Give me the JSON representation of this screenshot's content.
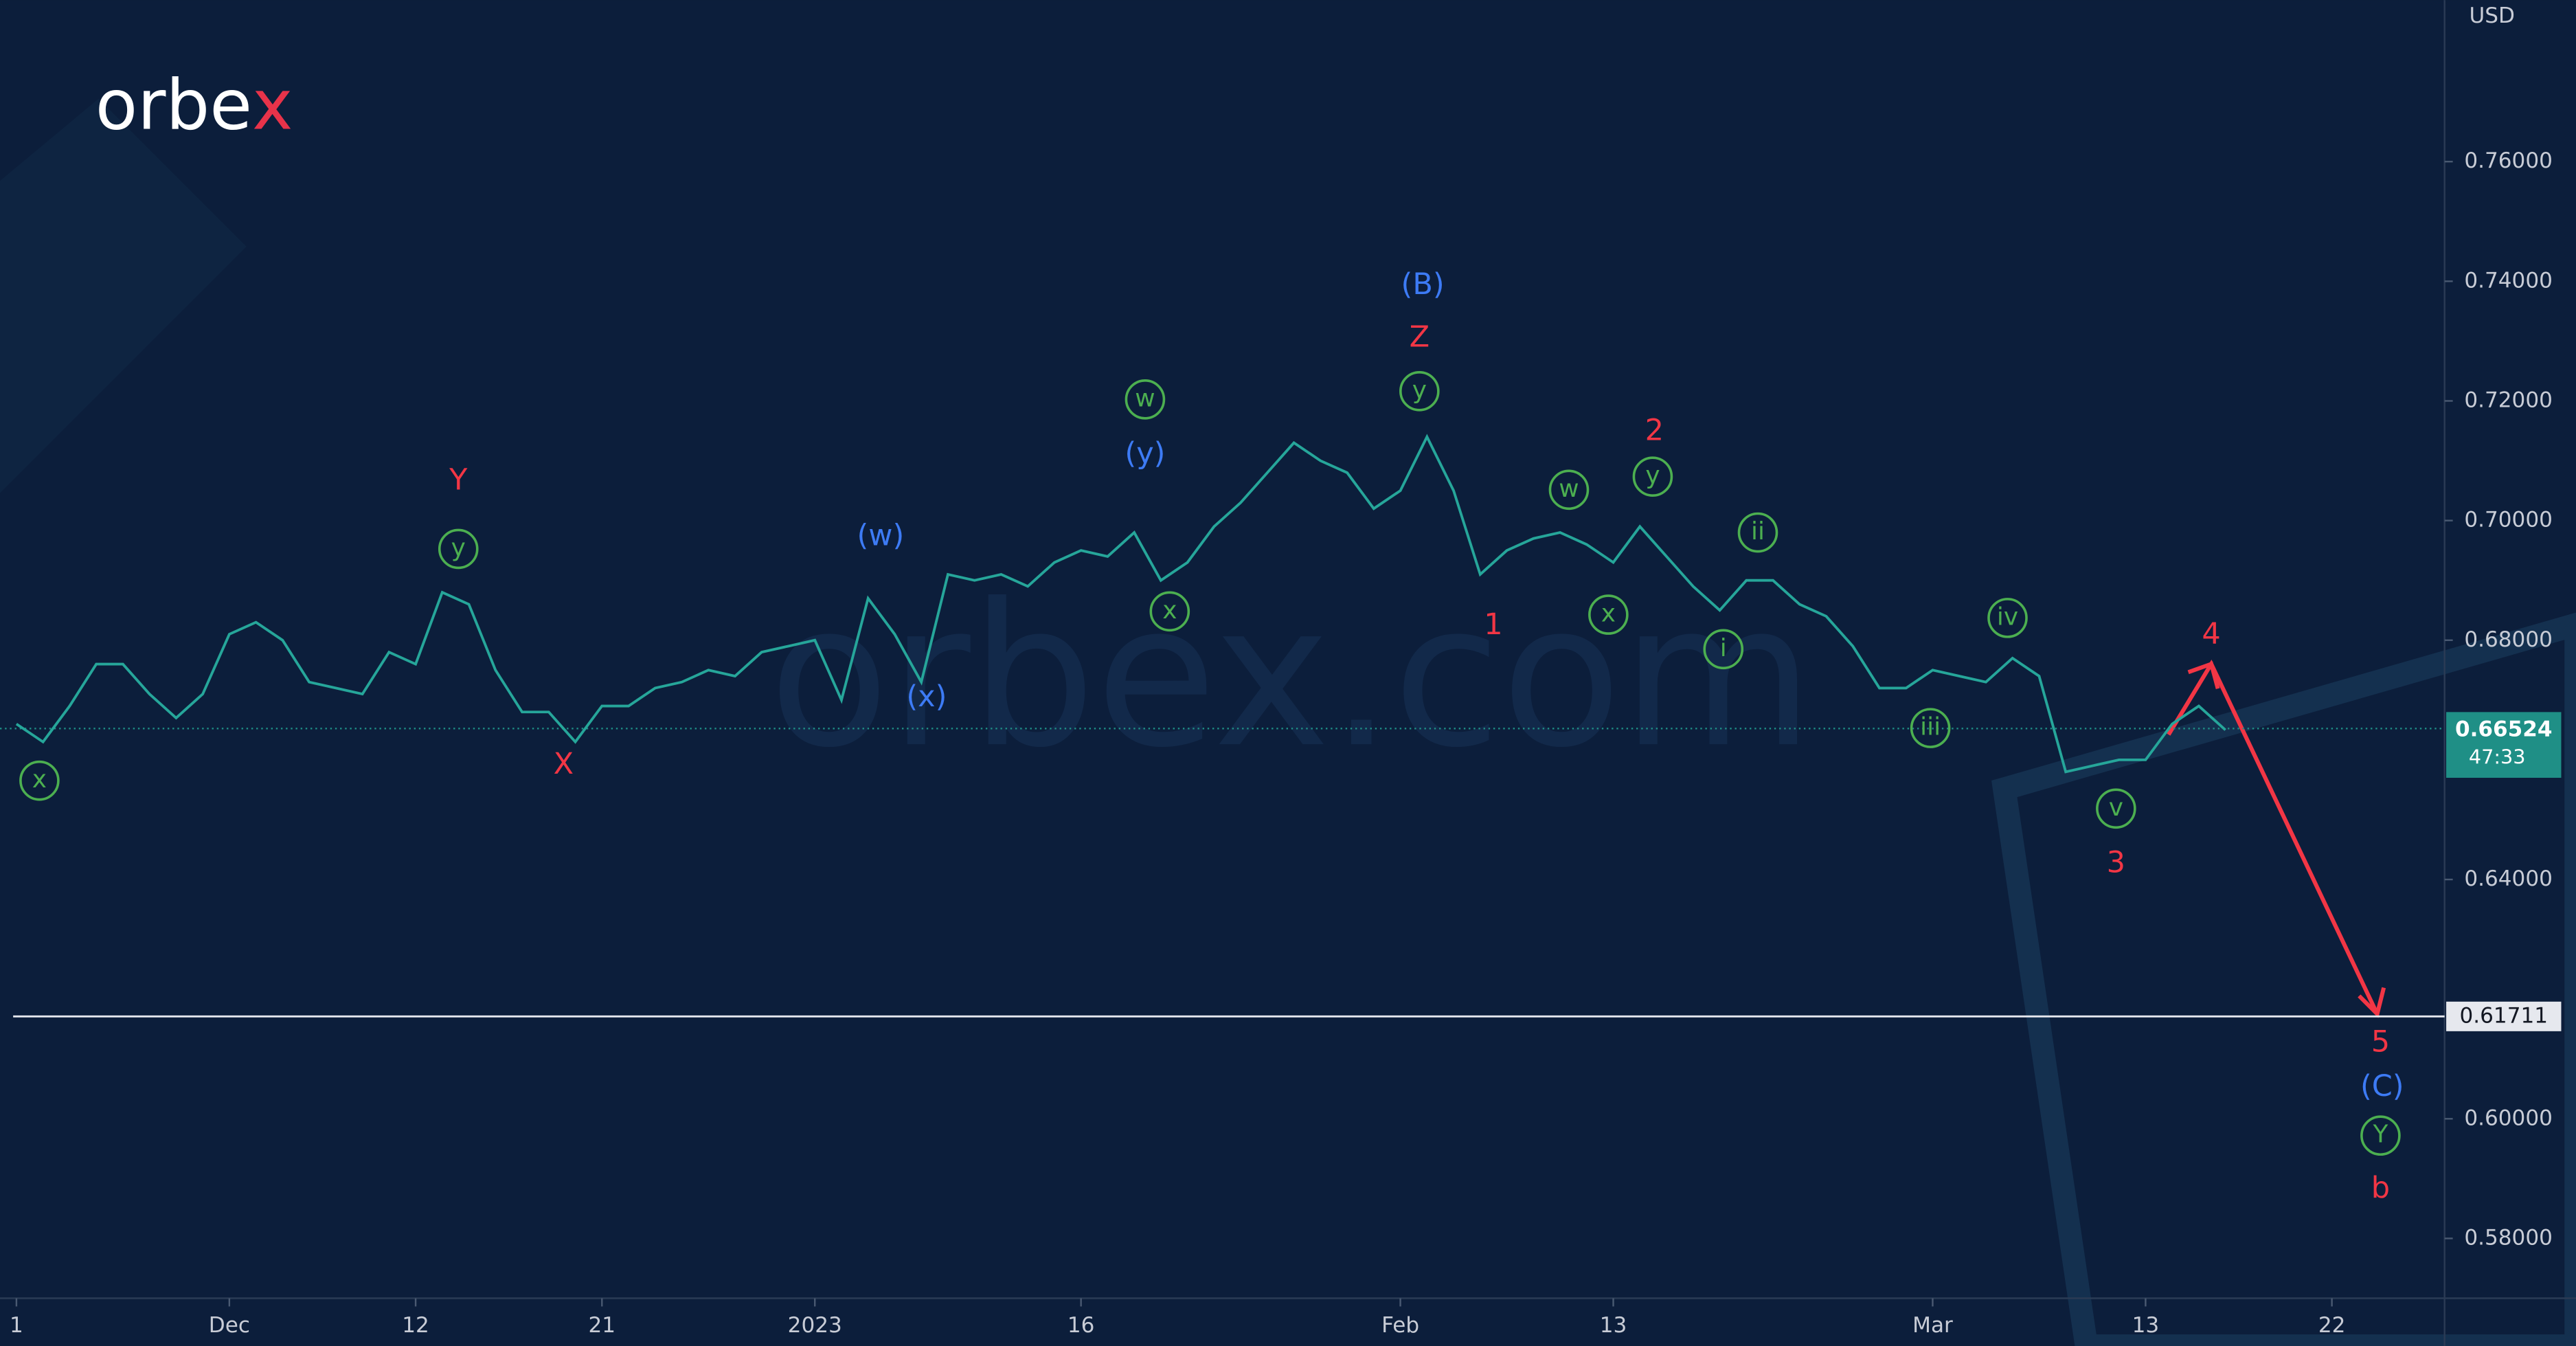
{
  "logo": "orbex",
  "watermark": "orbex.com",
  "chart_data": {
    "type": "line",
    "currency": "USD",
    "color": "#26a69a",
    "x": [
      "2022-11-21",
      "2022-11-22",
      "2022-11-23",
      "2022-11-24",
      "2022-11-25",
      "2022-11-28",
      "2022-11-29",
      "2022-11-30",
      "2022-12-01",
      "2022-12-02",
      "2022-12-05",
      "2022-12-06",
      "2022-12-07",
      "2022-12-08",
      "2022-12-09",
      "2022-12-12",
      "2022-12-13",
      "2022-12-14",
      "2022-12-15",
      "2022-12-16",
      "2022-12-19",
      "2022-12-20",
      "2022-12-21",
      "2022-12-22",
      "2022-12-23",
      "2022-12-26",
      "2022-12-27",
      "2022-12-28",
      "2022-12-29",
      "2022-12-30",
      "2023-01-02",
      "2023-01-03",
      "2023-01-04",
      "2023-01-05",
      "2023-01-06",
      "2023-01-09",
      "2023-01-10",
      "2023-01-11",
      "2023-01-12",
      "2023-01-13",
      "2023-01-16",
      "2023-01-17",
      "2023-01-18",
      "2023-01-19",
      "2023-01-20",
      "2023-01-23",
      "2023-01-24",
      "2023-01-25",
      "2023-01-26",
      "2023-01-27",
      "2023-01-30",
      "2023-01-31",
      "2023-02-01",
      "2023-02-02",
      "2023-02-03",
      "2023-02-06",
      "2023-02-07",
      "2023-02-08",
      "2023-02-09",
      "2023-02-10",
      "2023-02-13",
      "2023-02-14",
      "2023-02-15",
      "2023-02-16",
      "2023-02-17",
      "2023-02-20",
      "2023-02-21",
      "2023-02-22",
      "2023-02-23",
      "2023-02-24",
      "2023-02-27",
      "2023-02-28",
      "2023-03-01",
      "2023-03-02",
      "2023-03-03",
      "2023-03-06",
      "2023-03-07",
      "2023-03-08",
      "2023-03-09",
      "2023-03-10",
      "2023-03-13",
      "2023-03-14",
      "2023-03-15",
      "2023-03-16"
    ],
    "values": [
      0.666,
      0.663,
      0.669,
      0.676,
      0.676,
      0.671,
      0.667,
      0.671,
      0.681,
      0.683,
      0.68,
      0.673,
      0.672,
      0.671,
      0.678,
      0.676,
      0.688,
      0.686,
      0.675,
      0.668,
      0.668,
      0.663,
      0.669,
      0.669,
      0.672,
      0.673,
      0.675,
      0.674,
      0.678,
      0.679,
      0.68,
      0.67,
      0.687,
      0.681,
      0.673,
      0.691,
      0.69,
      0.691,
      0.689,
      0.693,
      0.695,
      0.694,
      0.698,
      0.69,
      0.693,
      0.699,
      0.703,
      0.708,
      0.713,
      0.71,
      0.708,
      0.702,
      0.705,
      0.714,
      0.705,
      0.691,
      0.695,
      0.697,
      0.698,
      0.696,
      0.693,
      0.699,
      0.694,
      0.689,
      0.685,
      0.69,
      0.69,
      0.686,
      0.684,
      0.679,
      0.672,
      0.672,
      0.675,
      0.674,
      0.673,
      0.677,
      0.674,
      0.658,
      0.659,
      0.66,
      0.66,
      0.666,
      0.669,
      0.665
    ],
    "xticks": [
      {
        "value": "2022-11-21",
        "label": "1"
      },
      {
        "value": "2022-12-01",
        "label": "Dec"
      },
      {
        "value": "2022-12-12",
        "label": "12"
      },
      {
        "value": "2022-12-21",
        "label": "21"
      },
      {
        "value": "2023-01-02",
        "label": "2023"
      },
      {
        "value": "2023-01-16",
        "label": "16"
      },
      {
        "value": "2023-02-01",
        "label": "Feb"
      },
      {
        "value": "2023-02-13",
        "label": "13"
      },
      {
        "value": "2023-03-01",
        "label": "Mar"
      },
      {
        "value": "2023-03-13",
        "label": "13"
      },
      {
        "value": "2023-03-22",
        "label": "22"
      }
    ],
    "ylim": [
      0.57,
      0.787
    ],
    "yticks": [
      {
        "value": 0.58,
        "label": "0.58000"
      },
      {
        "value": 0.6,
        "label": "0.60000"
      },
      {
        "value": 0.64,
        "label": "0.64000"
      },
      {
        "value": 0.68,
        "label": "0.68000"
      },
      {
        "value": 0.7,
        "label": "0.70000"
      },
      {
        "value": 0.72,
        "label": "0.72000"
      },
      {
        "value": 0.74,
        "label": "0.74000"
      },
      {
        "value": 0.76,
        "label": "0.76000"
      }
    ],
    "price_line": {
      "value": 0.66524,
      "label": "0.66524",
      "countdown": "47:33",
      "color": "#1f8f86"
    },
    "level_line": {
      "value": 0.61711,
      "label": "0.61711",
      "color": "#e6e8ee"
    },
    "wave_labels": [
      {
        "text": "Y",
        "color": "#f23645"
      },
      {
        "text": "X",
        "color": "#f23645"
      },
      {
        "text": "Z",
        "color": "#f23645"
      },
      {
        "text": "1",
        "color": "#f23645"
      },
      {
        "text": "2",
        "color": "#f23645"
      },
      {
        "text": "3",
        "color": "#f23645"
      },
      {
        "text": "4",
        "color": "#f23645"
      },
      {
        "text": "5",
        "color": "#f23645"
      },
      {
        "text": "b",
        "color": "#f23645"
      },
      {
        "text": "(B)",
        "color": "#3d7bf5"
      },
      {
        "text": "(w)",
        "color": "#3d7bf5"
      },
      {
        "text": "(y)",
        "color": "#3d7bf5"
      },
      {
        "text": "(x)",
        "color": "#3d7bf5"
      },
      {
        "text": "(C)",
        "color": "#3d7bf5"
      }
    ],
    "circled_wave_labels": [
      {
        "text": "x",
        "color": "#4caf50"
      },
      {
        "text": "y",
        "color": "#4caf50"
      },
      {
        "text": "w",
        "color": "#4caf50"
      },
      {
        "text": "y",
        "color": "#4caf50"
      },
      {
        "text": "x",
        "color": "#4caf50"
      },
      {
        "text": "w",
        "color": "#4caf50"
      },
      {
        "text": "y",
        "color": "#4caf50"
      },
      {
        "text": "x",
        "color": "#4caf50"
      },
      {
        "text": "ii",
        "color": "#4caf50"
      },
      {
        "text": "i",
        "color": "#4caf50"
      },
      {
        "text": "iv",
        "color": "#4caf50"
      },
      {
        "text": "iii",
        "color": "#4caf50"
      },
      {
        "text": "v",
        "color": "#4caf50"
      },
      {
        "text": "Y",
        "color": "#4caf50"
      }
    ]
  }
}
